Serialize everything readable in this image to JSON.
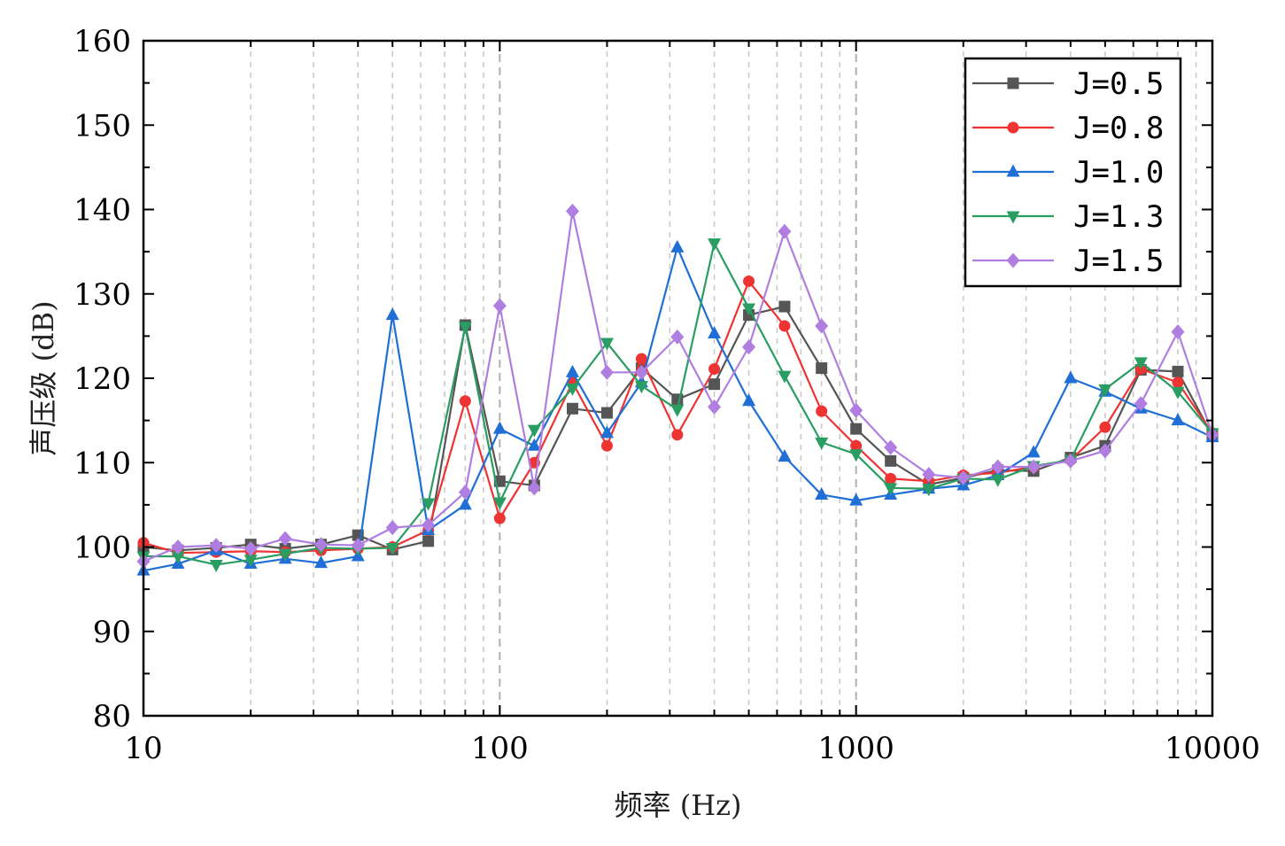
{
  "chart_data": {
    "type": "line",
    "xscale": "log",
    "xlabel": "频率 (Hz)",
    "ylabel": "声压级 (dB)",
    "xlim": [
      10,
      10000
    ],
    "ylim": [
      80,
      160
    ],
    "x_ticks": [
      10,
      100,
      1000,
      10000
    ],
    "x_tick_labels": [
      "10",
      "100",
      "1000",
      "10000"
    ],
    "y_ticks": [
      80,
      90,
      100,
      110,
      120,
      130,
      140,
      150,
      160
    ],
    "y_tick_labels": [
      "80",
      "90",
      "100",
      "110",
      "120",
      "130",
      "140",
      "150",
      "160"
    ],
    "grid": "vertical dashed at each decade subdivision",
    "legend_position": "top-right",
    "x": [
      10,
      12.5,
      16,
      20,
      25,
      31.5,
      40,
      50,
      63,
      80,
      100,
      125,
      160,
      200,
      250,
      315,
      400,
      500,
      630,
      800,
      1000,
      1250,
      1600,
      2000,
      2500,
      3150,
      4000,
      5000,
      6300,
      8000,
      10000
    ],
    "series": [
      {
        "name": "J=0.5",
        "color": "#555555",
        "marker": "square",
        "values": [
          100.0,
          99.6,
          99.9,
          100.3,
          99.8,
          100.3,
          101.4,
          99.7,
          100.7,
          126.3,
          107.8,
          107.3,
          116.4,
          115.9,
          121.2,
          117.5,
          119.3,
          127.5,
          128.5,
          121.2,
          114.0,
          110.2,
          107.4,
          108.2,
          109.1,
          109.0,
          110.6,
          112.0,
          121.0,
          120.8,
          113.2
        ]
      },
      {
        "name": "J=0.8",
        "color": "#ee3333",
        "marker": "circle",
        "values": [
          100.5,
          99.3,
          99.4,
          99.5,
          99.4,
          99.6,
          99.8,
          100.0,
          102.0,
          117.3,
          103.4,
          110.0,
          119.5,
          112.0,
          122.3,
          113.3,
          121.1,
          131.5,
          126.2,
          116.1,
          112.0,
          108.1,
          107.8,
          108.5,
          108.8,
          109.5,
          110.3,
          114.2,
          121.1,
          119.5,
          113.5
        ]
      },
      {
        "name": "J=1.0",
        "color": "#1f6fd6",
        "marker": "triangle-up",
        "values": [
          97.2,
          98.0,
          99.6,
          98.0,
          98.6,
          98.1,
          98.9,
          127.5,
          102.0,
          105.0,
          114.0,
          112.0,
          120.7,
          113.5,
          119.5,
          135.5,
          125.3,
          117.3,
          110.7,
          106.2,
          105.5,
          106.2,
          106.9,
          107.3,
          108.5,
          111.2,
          120.0,
          118.4,
          116.4,
          115.0,
          113.0
        ]
      },
      {
        "name": "J=1.3",
        "color": "#2a9d63",
        "marker": "triangle-down",
        "values": [
          98.9,
          98.9,
          97.9,
          98.5,
          99.2,
          99.9,
          99.8,
          99.9,
          105.2,
          126.1,
          105.3,
          113.9,
          118.8,
          124.2,
          119.1,
          116.3,
          136.0,
          128.3,
          120.3,
          112.4,
          111.0,
          107.0,
          106.9,
          108.1,
          108.0,
          109.6,
          110.3,
          118.7,
          121.9,
          118.4,
          113.5
        ]
      },
      {
        "name": "J=1.5",
        "color": "#b07ee0",
        "marker": "diamond",
        "values": [
          98.3,
          100.0,
          100.2,
          99.8,
          101.0,
          100.3,
          100.2,
          102.3,
          102.6,
          106.5,
          128.6,
          107.0,
          139.8,
          120.7,
          120.7,
          124.9,
          116.6,
          123.7,
          137.4,
          126.2,
          116.2,
          111.8,
          108.6,
          108.2,
          109.5,
          109.5,
          110.2,
          111.4,
          117.0,
          125.5,
          113.3
        ]
      }
    ]
  }
}
